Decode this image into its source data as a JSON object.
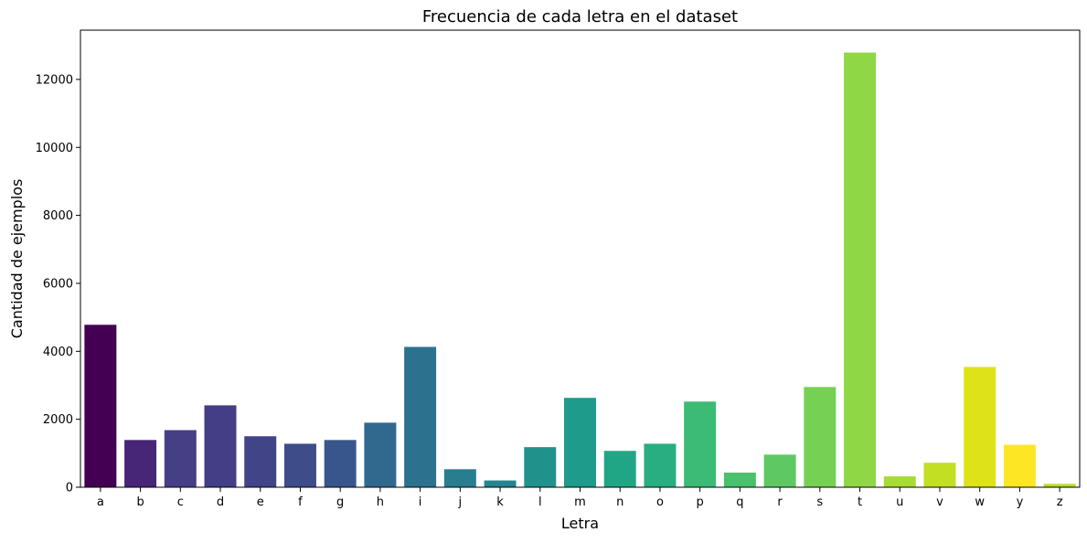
{
  "chart_data": {
    "type": "bar",
    "title": "Frecuencia de cada letra en el dataset",
    "xlabel": "Letra",
    "ylabel": "Cantidad de ejemplos",
    "categories": [
      "a",
      "b",
      "c",
      "d",
      "e",
      "f",
      "g",
      "h",
      "i",
      "j",
      "k",
      "l",
      "m",
      "n",
      "o",
      "p",
      "q",
      "r",
      "s",
      "t",
      "u",
      "v",
      "w",
      "y",
      "z"
    ],
    "values": [
      4780,
      1390,
      1680,
      2410,
      1500,
      1280,
      1390,
      1900,
      4130,
      530,
      200,
      1180,
      2630,
      1070,
      1280,
      2520,
      430,
      960,
      2950,
      12790,
      320,
      720,
      3540,
      1250,
      100
    ],
    "colors": [
      "#440154",
      "#472577",
      "#463f86",
      "#433e85",
      "#414487",
      "#3e4c8a",
      "#39568c",
      "#31688e",
      "#2c728e",
      "#287d8e",
      "#25858e",
      "#21918c",
      "#1e9b8a",
      "#21a685",
      "#28ae80",
      "#3bbb75",
      "#4ac16d",
      "#5ec962",
      "#75d054",
      "#8fd744",
      "#a8db34",
      "#c2df23",
      "#dde318",
      "#fde725",
      "#b8de29"
    ],
    "ylim": [
      0,
      13450
    ],
    "yticks": [
      0,
      2000,
      4000,
      6000,
      8000,
      10000,
      12000
    ],
    "grid": false,
    "palette": "viridis"
  }
}
